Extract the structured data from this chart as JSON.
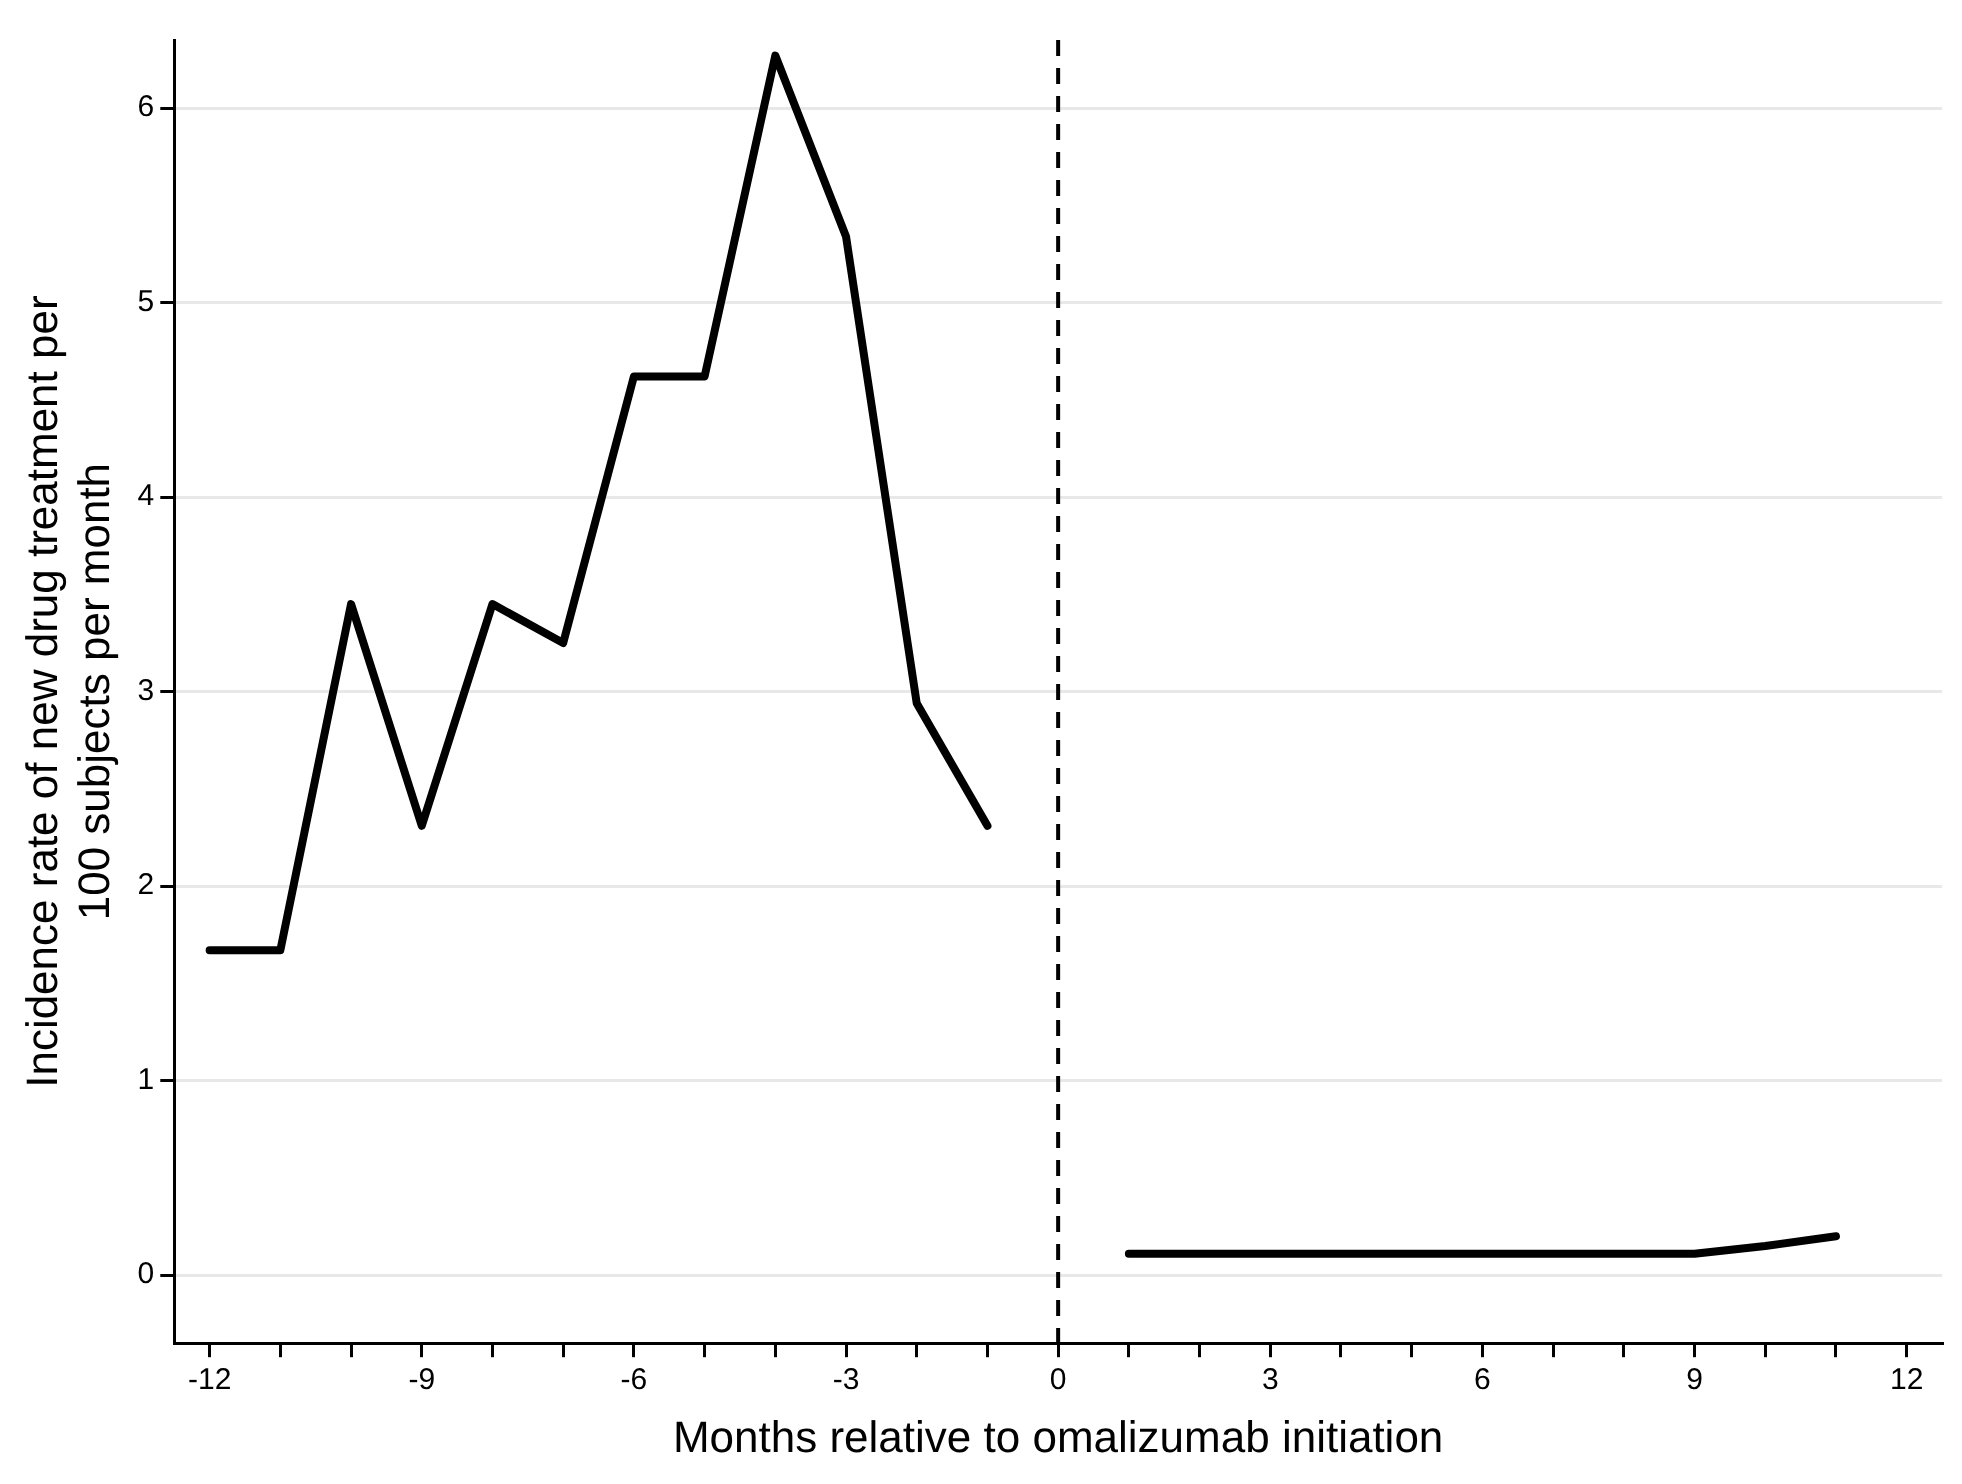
{
  "chart_data": {
    "type": "line",
    "xlabel": "Months relative to omalizumab initiation",
    "ylabel": "Incidence rate of new drug treatment per 100 subjects per month",
    "x": [
      -12,
      -11,
      -10,
      -9,
      -8,
      -7,
      -6,
      -5,
      -4,
      -3,
      -2,
      -1,
      0,
      1,
      2,
      3,
      4,
      5,
      6,
      7,
      8,
      9,
      10,
      11
    ],
    "series": [
      {
        "color": "#000000",
        "values": [
          1.67,
          1.67,
          3.45,
          2.31,
          3.45,
          3.25,
          4.62,
          4.62,
          6.27,
          5.34,
          2.94,
          2.31,
          null,
          0.11,
          0.11,
          0.11,
          0.11,
          0.11,
          0.11,
          0.11,
          0.11,
          0.11,
          0.15,
          0.2
        ]
      }
    ],
    "xlim": [
      -12.5,
      12.5
    ],
    "xticks": [
      -12,
      {
        "value": -11,
        "label": null
      },
      {
        "value": -10,
        "label": null
      },
      -9,
      {
        "value": -8,
        "label": null
      },
      {
        "value": -7,
        "label": null
      },
      -6,
      {
        "value": -5,
        "label": null
      },
      {
        "value": -4,
        "label": null
      },
      -3,
      {
        "value": -2,
        "label": null
      },
      {
        "value": -1,
        "label": null
      },
      0,
      {
        "value": 1,
        "label": null
      },
      {
        "value": 2,
        "label": null
      },
      3,
      {
        "value": 4,
        "label": null
      },
      {
        "value": 5,
        "label": null
      },
      6,
      {
        "value": 7,
        "label": null
      },
      {
        "value": 8,
        "label": null
      },
      9,
      {
        "value": 10,
        "label": null
      },
      {
        "value": 11,
        "label": null
      },
      12
    ],
    "ylim": [
      -0.35,
      6.35
    ],
    "yticks": [
      0,
      1,
      2,
      3,
      4,
      5,
      6
    ],
    "grid": "y",
    "legend": false,
    "marker": "none",
    "line_style": "solid",
    "ref_lines": [
      {
        "axis": "x",
        "value": 0,
        "line_style": "dashed",
        "color": "#000000"
      }
    ]
  }
}
